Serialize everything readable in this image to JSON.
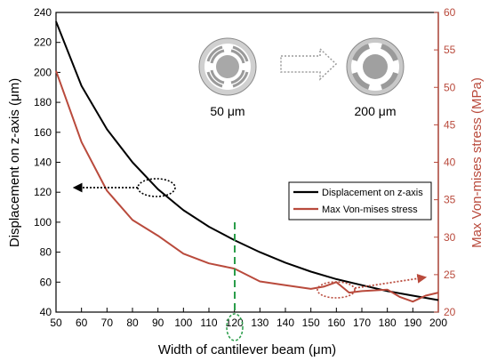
{
  "chart_data": {
    "type": "line",
    "xlabel": "Width of cantilever beam (μm)",
    "ylabel_left": "Displacement on z-axis (μm)",
    "ylabel_right": "Max Von-mises stress (MPa)",
    "xlim": [
      50,
      200
    ],
    "ylim_left": [
      40,
      240
    ],
    "ylim_right": [
      20,
      60
    ],
    "x_ticks": [
      50,
      60,
      70,
      80,
      90,
      100,
      110,
      120,
      130,
      140,
      150,
      160,
      170,
      180,
      190,
      200
    ],
    "y_left_ticks": [
      40,
      60,
      80,
      100,
      120,
      140,
      160,
      180,
      200,
      220,
      240
    ],
    "y_right_ticks": [
      20,
      25,
      30,
      35,
      40,
      45,
      50,
      55,
      60
    ],
    "grid": false,
    "legend_position": "center-right",
    "series": [
      {
        "name": "Displacement on z-axis",
        "axis": "left",
        "color": "#000000",
        "x": [
          50,
          60,
          70,
          80,
          90,
          100,
          110,
          120,
          130,
          140,
          150,
          160,
          170,
          180,
          190,
          200
        ],
        "y": [
          234,
          191,
          162,
          140,
          122,
          108,
          97,
          88,
          80,
          73,
          67,
          62,
          58,
          54,
          51,
          48
        ]
      },
      {
        "name": "Max Von-mises stress",
        "axis": "right",
        "color": "#b94a3c",
        "x": [
          50,
          60,
          70,
          80,
          90,
          100,
          110,
          120,
          130,
          140,
          150,
          155,
          160,
          165,
          170,
          180,
          185,
          190,
          195,
          200
        ],
        "y": [
          52.2,
          42.7,
          36.2,
          32.3,
          30.2,
          27.8,
          26.5,
          25.8,
          24.1,
          23.6,
          23.1,
          23.4,
          24.0,
          22.6,
          22.8,
          23.0,
          22.0,
          21.4,
          22.2,
          22.6
        ]
      }
    ],
    "inset_labels": [
      "50 μm",
      "200 μm"
    ]
  }
}
